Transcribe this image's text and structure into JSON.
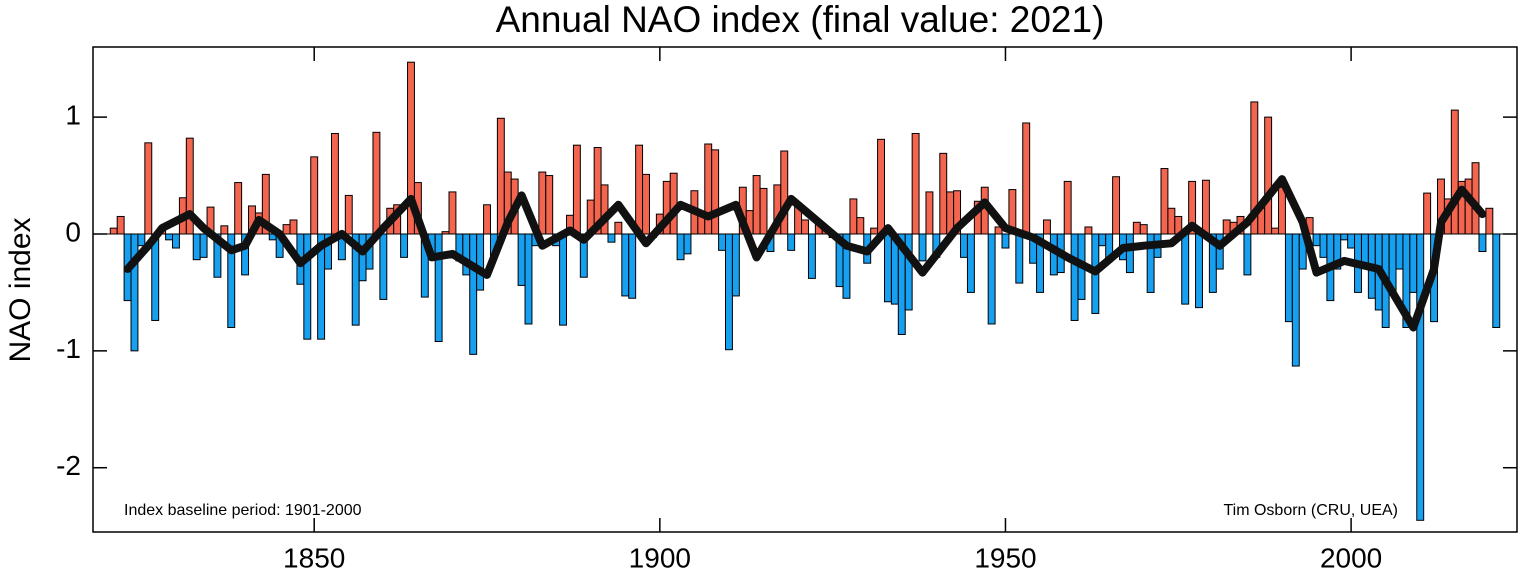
{
  "chart_data": {
    "type": "bar",
    "title": "Annual NAO index (final value: 2021)",
    "y_label": "NAO index",
    "annotations": [
      "Index baseline period: 1901-2000",
      "Tim Osborn (CRU, UEA)"
    ],
    "x": [
      1821,
      1822,
      1823,
      1824,
      1825,
      1826,
      1827,
      1828,
      1829,
      1830,
      1831,
      1832,
      1833,
      1834,
      1835,
      1836,
      1837,
      1838,
      1839,
      1840,
      1841,
      1842,
      1843,
      1844,
      1845,
      1846,
      1847,
      1848,
      1849,
      1850,
      1851,
      1852,
      1853,
      1854,
      1855,
      1856,
      1857,
      1858,
      1859,
      1860,
      1861,
      1862,
      1863,
      1864,
      1865,
      1866,
      1867,
      1868,
      1869,
      1870,
      1871,
      1872,
      1873,
      1874,
      1875,
      1876,
      1877,
      1878,
      1879,
      1880,
      1881,
      1882,
      1883,
      1884,
      1885,
      1886,
      1887,
      1888,
      1889,
      1890,
      1891,
      1892,
      1893,
      1894,
      1895,
      1896,
      1897,
      1898,
      1899,
      1900,
      1901,
      1902,
      1903,
      1904,
      1905,
      1906,
      1907,
      1908,
      1909,
      1910,
      1911,
      1912,
      1913,
      1914,
      1915,
      1916,
      1917,
      1918,
      1919,
      1920,
      1921,
      1922,
      1923,
      1924,
      1925,
      1926,
      1927,
      1928,
      1929,
      1930,
      1931,
      1932,
      1933,
      1934,
      1935,
      1936,
      1937,
      1938,
      1939,
      1940,
      1941,
      1942,
      1943,
      1944,
      1945,
      1946,
      1947,
      1948,
      1949,
      1950,
      1951,
      1952,
      1953,
      1954,
      1955,
      1956,
      1957,
      1958,
      1959,
      1960,
      1961,
      1962,
      1963,
      1964,
      1965,
      1966,
      1967,
      1968,
      1969,
      1970,
      1971,
      1972,
      1973,
      1974,
      1975,
      1976,
      1977,
      1978,
      1979,
      1980,
      1981,
      1982,
      1983,
      1984,
      1985,
      1986,
      1987,
      1988,
      1989,
      1990,
      1991,
      1992,
      1993,
      1994,
      1995,
      1996,
      1997,
      1998,
      1999,
      2000,
      2001,
      2002,
      2003,
      2004,
      2005,
      2006,
      2007,
      2008,
      2009,
      2010,
      2011,
      2012,
      2013,
      2014,
      2015,
      2016,
      2017,
      2018,
      2019,
      2020,
      2021
    ],
    "values": [
      0.05,
      0.15,
      -0.57,
      -1.0,
      -0.1,
      0.78,
      -0.74,
      0.04,
      -0.05,
      -0.12,
      0.31,
      0.82,
      -0.22,
      -0.2,
      0.23,
      -0.37,
      0.07,
      -0.8,
      0.44,
      -0.35,
      0.24,
      0.18,
      0.51,
      -0.05,
      -0.2,
      0.08,
      0.12,
      -0.43,
      -0.9,
      0.66,
      -0.9,
      -0.3,
      0.86,
      -0.22,
      0.33,
      -0.78,
      -0.4,
      -0.3,
      0.87,
      -0.56,
      0.22,
      0.25,
      -0.2,
      1.47,
      0.44,
      -0.54,
      -0.2,
      -0.92,
      0.02,
      0.36,
      -0.23,
      -0.35,
      -1.03,
      -0.48,
      0.25,
      -0.2,
      0.99,
      0.53,
      0.47,
      -0.44,
      -0.77,
      -0.1,
      0.53,
      0.5,
      -0.1,
      -0.78,
      0.16,
      0.76,
      -0.37,
      0.29,
      0.74,
      0.42,
      -0.07,
      0.1,
      -0.53,
      -0.55,
      0.76,
      0.51,
      -0.03,
      0.17,
      0.45,
      0.52,
      -0.22,
      -0.17,
      0.37,
      0.17,
      0.77,
      0.72,
      -0.14,
      -0.99,
      -0.53,
      0.4,
      0.2,
      0.5,
      0.39,
      -0.15,
      0.42,
      0.71,
      -0.14,
      0.25,
      0.12,
      -0.38,
      0.1,
      0.06,
      -0.03,
      -0.45,
      -0.55,
      0.3,
      0.14,
      -0.25,
      0.05,
      0.81,
      -0.58,
      -0.6,
      -0.86,
      -0.65,
      0.86,
      -0.23,
      0.36,
      -0.2,
      0.69,
      0.36,
      0.37,
      -0.2,
      -0.5,
      0.28,
      0.4,
      -0.77,
      0.06,
      -0.12,
      0.38,
      -0.42,
      0.95,
      -0.25,
      -0.5,
      0.12,
      -0.35,
      -0.33,
      0.45,
      -0.74,
      -0.56,
      0.06,
      -0.68,
      -0.1,
      -0.2,
      0.49,
      -0.22,
      -0.33,
      0.1,
      0.08,
      -0.5,
      -0.2,
      0.56,
      0.22,
      0.15,
      -0.6,
      0.45,
      -0.63,
      0.46,
      -0.5,
      -0.3,
      0.12,
      0.1,
      0.15,
      -0.35,
      1.13,
      0.22,
      1.0,
      0.05,
      0.4,
      -0.75,
      -1.13,
      -0.3,
      0.14,
      -0.1,
      -0.2,
      -0.57,
      -0.3,
      -0.05,
      -0.12,
      -0.5,
      -0.28,
      -0.55,
      -0.65,
      -0.8,
      -0.5,
      -0.3,
      -0.8,
      -0.5,
      -2.45,
      0.35,
      -0.75,
      0.47,
      0.3,
      1.06,
      0.45,
      0.47,
      0.61,
      -0.15,
      0.22,
      -0.8
    ],
    "positive_color": "#f4654f",
    "negative_color": "#179ff0",
    "smooth": {
      "x": [
        1823,
        1826,
        1828,
        1832,
        1834,
        1838,
        1840,
        1842,
        1845,
        1848,
        1851,
        1854,
        1857,
        1860,
        1864,
        1867,
        1870,
        1875,
        1878,
        1880,
        1883,
        1887,
        1889,
        1894,
        1898,
        1903,
        1907,
        1911,
        1914,
        1919,
        1923,
        1927,
        1930,
        1933,
        1938,
        1943,
        1947,
        1950,
        1954,
        1959,
        1963,
        1967,
        1970,
        1974,
        1977,
        1981,
        1985,
        1990,
        1993,
        1995,
        1999,
        2004,
        2009,
        2012,
        2013,
        2016,
        2019
      ],
      "values": [
        -0.3,
        -0.1,
        0.05,
        0.17,
        0.05,
        -0.14,
        -0.1,
        0.12,
        0.0,
        -0.25,
        -0.1,
        0.0,
        -0.15,
        0.05,
        0.3,
        -0.2,
        -0.17,
        -0.35,
        0.1,
        0.33,
        -0.1,
        0.03,
        -0.05,
        0.25,
        -0.08,
        0.25,
        0.15,
        0.25,
        -0.2,
        0.3,
        0.1,
        -0.1,
        -0.15,
        0.05,
        -0.33,
        0.05,
        0.27,
        0.05,
        -0.03,
        -0.2,
        -0.32,
        -0.12,
        -0.1,
        -0.08,
        0.07,
        -0.1,
        0.1,
        0.47,
        0.1,
        -0.33,
        -0.23,
        -0.3,
        -0.8,
        -0.3,
        0.1,
        0.38,
        0.17
      ],
      "color": "#111111"
    },
    "xlim": [
      1818,
      2024
    ],
    "ylim": [
      -2.55,
      1.6
    ],
    "xticks": [
      1850,
      1900,
      1950,
      2000
    ],
    "yticks": [
      -2,
      -1,
      0,
      1
    ]
  }
}
